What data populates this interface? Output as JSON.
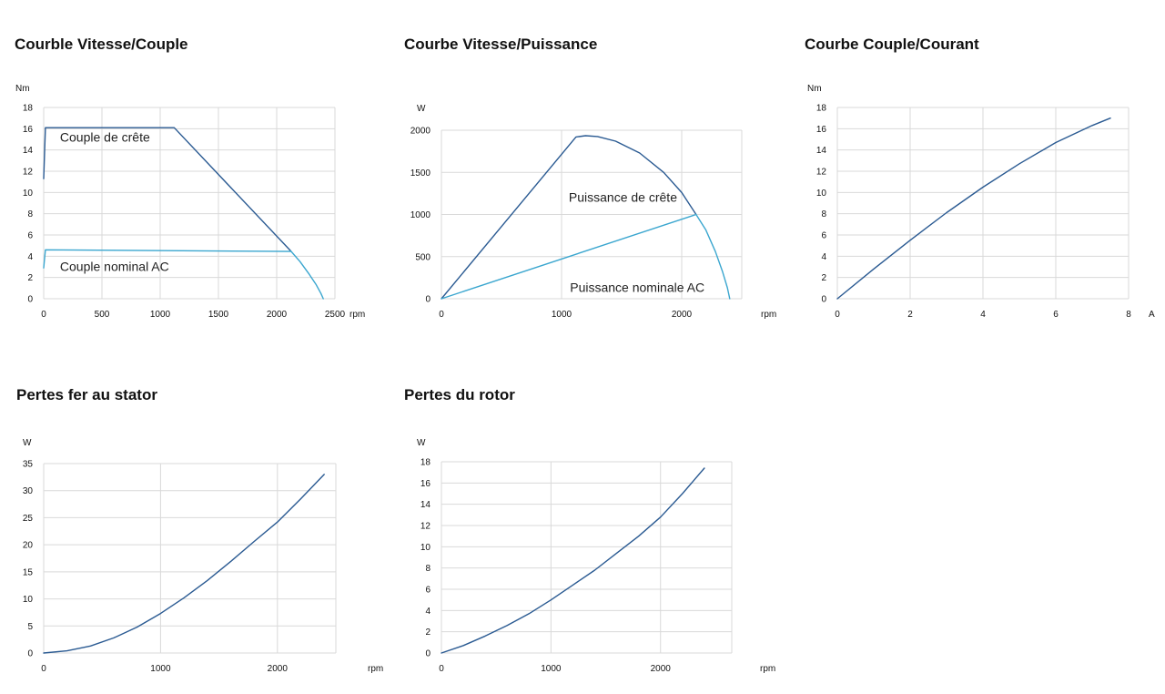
{
  "colors": {
    "dark_blue": "#2a5a92",
    "light_blue": "#3aa6cf"
  },
  "chart_data": [
    {
      "type": "line",
      "title": "Courble Vitesse/Couple",
      "ylabel": "Nm",
      "xlabel": "rpm",
      "xlim": [
        0,
        2500
      ],
      "ylim": [
        0,
        18
      ],
      "xticks": [
        0,
        500,
        1000,
        1500,
        2000,
        2500
      ],
      "yticks": [
        0,
        2,
        4,
        6,
        8,
        10,
        12,
        14,
        16,
        18
      ],
      "grid": true,
      "series": [
        {
          "name": "Couple de crête",
          "color": "#2a5a92",
          "x": [
            0,
            15,
            1120,
            2120
          ],
          "y": [
            11.3,
            16.1,
            16.1,
            4.5
          ]
        },
        {
          "name": "Couple nominal AC",
          "color": "#3aa6cf",
          "x": [
            0,
            15,
            2120
          ],
          "y": [
            2.9,
            4.6,
            4.45
          ]
        },
        {
          "name": "",
          "color": "#3aa6cf",
          "x": [
            2120,
            2200,
            2280,
            2340,
            2380,
            2400
          ],
          "y": [
            4.5,
            3.5,
            2.3,
            1.3,
            0.5,
            0
          ]
        }
      ],
      "annotations": [
        {
          "text": "Couple de crête",
          "x": 140,
          "y": 14.8
        },
        {
          "text": "Couple nominal AC",
          "x": 140,
          "y": 2.6
        }
      ]
    },
    {
      "type": "line",
      "title": "Courbe Vitesse/Puissance",
      "ylabel": "W",
      "xlabel": "rpm",
      "xlim": [
        0,
        2500
      ],
      "ylim": [
        0,
        2000
      ],
      "xticks": [
        0,
        1000,
        2000
      ],
      "yticks": [
        0,
        500,
        1000,
        1500,
        2000
      ],
      "grid": true,
      "series": [
        {
          "name": "Puissance de crête",
          "color": "#2a5a92",
          "x": [
            0,
            1120,
            1200,
            1300,
            1450,
            1650,
            1850,
            2000,
            2120
          ],
          "y": [
            0,
            1920,
            1935,
            1925,
            1870,
            1730,
            1500,
            1260,
            1000
          ]
        },
        {
          "name": "Puissance nominale AC",
          "color": "#3aa6cf",
          "x": [
            0,
            2120
          ],
          "y": [
            0,
            1000
          ]
        },
        {
          "name": "",
          "color": "#3aa6cf",
          "x": [
            2120,
            2200,
            2280,
            2340,
            2380,
            2400
          ],
          "y": [
            1000,
            820,
            560,
            320,
            130,
            0
          ]
        }
      ],
      "annotations": [
        {
          "text": "Puissance de crête",
          "x": 1060,
          "y": 1150
        },
        {
          "text": "Puissance nominale AC",
          "x": 1070,
          "y": 80
        }
      ]
    },
    {
      "type": "line",
      "title": "Courbe Couple/Courant",
      "ylabel": "Nm",
      "xlabel": "A",
      "xlim": [
        0,
        8
      ],
      "ylim": [
        0,
        18
      ],
      "xticks": [
        0,
        2,
        4,
        6,
        8
      ],
      "yticks": [
        0,
        2,
        4,
        6,
        8,
        10,
        12,
        14,
        16,
        18
      ],
      "grid": true,
      "series": [
        {
          "name": "",
          "color": "#2a5a92",
          "x": [
            0,
            1,
            2,
            3,
            4,
            5,
            6,
            7,
            7.5
          ],
          "y": [
            0,
            2.8,
            5.5,
            8.1,
            10.5,
            12.7,
            14.7,
            16.3,
            17.0
          ]
        }
      ]
    },
    {
      "type": "line",
      "title": "Pertes fer au stator",
      "ylabel": "W",
      "xlabel": "rpm",
      "xlim": [
        0,
        2500
      ],
      "ylim": [
        0,
        35
      ],
      "xticks": [
        0,
        1000,
        2000
      ],
      "yticks": [
        0,
        5,
        10,
        15,
        20,
        25,
        30,
        35
      ],
      "grid": true,
      "series": [
        {
          "name": "",
          "color": "#2a5a92",
          "x": [
            0,
            200,
            400,
            600,
            800,
            1000,
            1200,
            1400,
            1600,
            1800,
            2000,
            2200,
            2400
          ],
          "y": [
            0,
            0.4,
            1.3,
            2.8,
            4.8,
            7.3,
            10.2,
            13.4,
            16.9,
            20.6,
            24.2,
            28.5,
            33.0
          ]
        }
      ]
    },
    {
      "type": "line",
      "title": "Pertes du rotor",
      "ylabel": "W",
      "xlabel": "rpm",
      "xlim": [
        0,
        2650
      ],
      "ylim": [
        0,
        18
      ],
      "xticks": [
        0,
        1000,
        2000
      ],
      "yticks": [
        0,
        2,
        4,
        6,
        8,
        10,
        12,
        14,
        16,
        18
      ],
      "grid": true,
      "series": [
        {
          "name": "",
          "color": "#2a5a92",
          "x": [
            0,
            200,
            400,
            600,
            800,
            1000,
            1200,
            1400,
            1600,
            1800,
            2000,
            2200,
            2400
          ],
          "y": [
            0,
            0.7,
            1.6,
            2.6,
            3.7,
            5.0,
            6.4,
            7.8,
            9.4,
            11.0,
            12.8,
            15.0,
            17.4
          ]
        }
      ]
    }
  ]
}
